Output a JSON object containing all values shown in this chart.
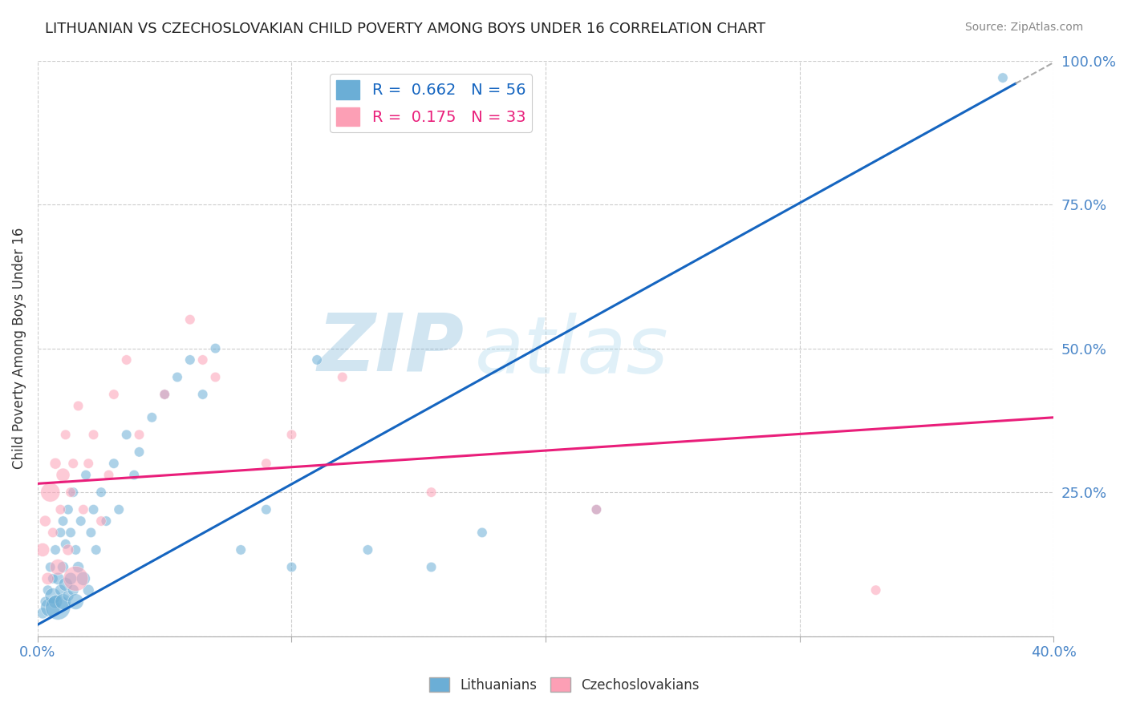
{
  "title": "LITHUANIAN VS CZECHOSLOVAKIAN CHILD POVERTY AMONG BOYS UNDER 16 CORRELATION CHART",
  "source": "Source: ZipAtlas.com",
  "ylabel": "Child Poverty Among Boys Under 16",
  "xlim": [
    0.0,
    0.4
  ],
  "ylim": [
    0.0,
    1.0
  ],
  "xticks": [
    0.0,
    0.1,
    0.2,
    0.3,
    0.4
  ],
  "yticks": [
    0.0,
    0.25,
    0.5,
    0.75,
    1.0
  ],
  "blue_R": 0.662,
  "blue_N": 56,
  "pink_R": 0.175,
  "pink_N": 33,
  "blue_color": "#6baed6",
  "pink_color": "#fc9fb5",
  "blue_line_color": "#1565C0",
  "pink_line_color": "#E91E7A",
  "watermark_zip": "ZIP",
  "watermark_atlas": "atlas",
  "background_color": "#ffffff",
  "grid_color": "#cccccc",
  "blue_line_x0": 0.0,
  "blue_line_y0": 0.02,
  "blue_line_x1": 0.385,
  "blue_line_y1": 0.96,
  "pink_line_x0": 0.0,
  "pink_line_y0": 0.265,
  "pink_line_x1": 0.4,
  "pink_line_y1": 0.38,
  "blue_scatter_x": [
    0.002,
    0.003,
    0.004,
    0.005,
    0.005,
    0.006,
    0.006,
    0.007,
    0.007,
    0.008,
    0.008,
    0.009,
    0.009,
    0.01,
    0.01,
    0.01,
    0.011,
    0.011,
    0.012,
    0.012,
    0.013,
    0.013,
    0.014,
    0.014,
    0.015,
    0.015,
    0.016,
    0.017,
    0.018,
    0.019,
    0.02,
    0.021,
    0.022,
    0.023,
    0.025,
    0.027,
    0.03,
    0.032,
    0.035,
    0.038,
    0.04,
    0.045,
    0.05,
    0.055,
    0.06,
    0.065,
    0.07,
    0.08,
    0.09,
    0.1,
    0.11,
    0.13,
    0.155,
    0.175,
    0.22,
    0.38
  ],
  "blue_scatter_y": [
    0.04,
    0.06,
    0.08,
    0.05,
    0.12,
    0.07,
    0.1,
    0.06,
    0.15,
    0.05,
    0.1,
    0.08,
    0.18,
    0.06,
    0.12,
    0.2,
    0.09,
    0.16,
    0.07,
    0.22,
    0.1,
    0.18,
    0.08,
    0.25,
    0.06,
    0.15,
    0.12,
    0.2,
    0.1,
    0.28,
    0.08,
    0.18,
    0.22,
    0.15,
    0.25,
    0.2,
    0.3,
    0.22,
    0.35,
    0.28,
    0.32,
    0.38,
    0.42,
    0.45,
    0.48,
    0.42,
    0.5,
    0.15,
    0.22,
    0.12,
    0.48,
    0.15,
    0.12,
    0.18,
    0.22,
    0.97
  ],
  "blue_scatter_size": [
    100,
    80,
    80,
    300,
    80,
    200,
    80,
    150,
    80,
    500,
    120,
    100,
    80,
    200,
    100,
    80,
    150,
    80,
    100,
    80,
    120,
    80,
    100,
    80,
    200,
    80,
    100,
    80,
    150,
    80,
    100,
    80,
    80,
    80,
    80,
    80,
    80,
    80,
    80,
    80,
    80,
    80,
    80,
    80,
    80,
    80,
    80,
    80,
    80,
    80,
    80,
    80,
    80,
    80,
    80,
    80
  ],
  "pink_scatter_x": [
    0.002,
    0.003,
    0.004,
    0.005,
    0.006,
    0.007,
    0.008,
    0.009,
    0.01,
    0.011,
    0.012,
    0.013,
    0.014,
    0.015,
    0.016,
    0.018,
    0.02,
    0.022,
    0.025,
    0.028,
    0.03,
    0.035,
    0.04,
    0.05,
    0.06,
    0.065,
    0.07,
    0.09,
    0.1,
    0.12,
    0.155,
    0.22,
    0.33
  ],
  "pink_scatter_y": [
    0.15,
    0.2,
    0.1,
    0.25,
    0.18,
    0.3,
    0.12,
    0.22,
    0.28,
    0.35,
    0.15,
    0.25,
    0.3,
    0.1,
    0.4,
    0.22,
    0.3,
    0.35,
    0.2,
    0.28,
    0.42,
    0.48,
    0.35,
    0.42,
    0.55,
    0.48,
    0.45,
    0.3,
    0.35,
    0.45,
    0.25,
    0.22,
    0.08
  ],
  "pink_scatter_size": [
    150,
    100,
    120,
    300,
    80,
    100,
    200,
    80,
    150,
    80,
    100,
    80,
    80,
    500,
    80,
    80,
    80,
    80,
    80,
    80,
    80,
    80,
    80,
    80,
    80,
    80,
    80,
    80,
    80,
    80,
    80,
    80,
    80
  ]
}
